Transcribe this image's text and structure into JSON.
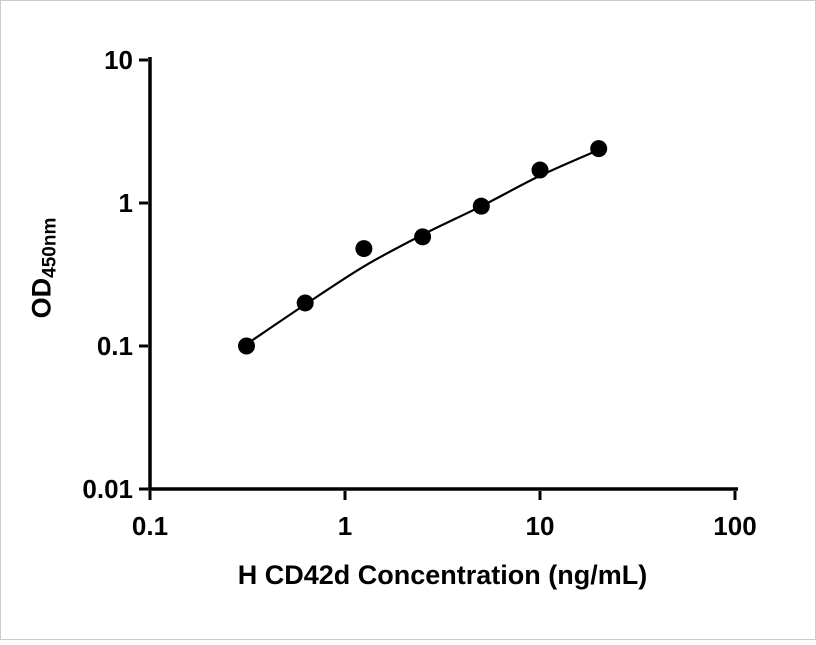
{
  "chart_data": {
    "type": "scatter",
    "title": "",
    "xlabel": "H CD42d Concentration (ng/mL)",
    "ylabel": "OD",
    "ylabel_subscript": "450nm",
    "xscale": "log",
    "yscale": "log",
    "xlim": [
      0.1,
      100
    ],
    "ylim": [
      0.01,
      10
    ],
    "grid": false,
    "legend": "none",
    "x_ticks": [
      0.1,
      1,
      10,
      100
    ],
    "x_tick_labels": [
      "0.1",
      "1",
      "10",
      "100"
    ],
    "y_ticks": [
      0.01,
      0.1,
      1,
      10
    ],
    "y_tick_labels": [
      "0.01",
      "0.1",
      "1",
      "10"
    ],
    "series": [
      {
        "name": "standard-points",
        "x": [
          0.3125,
          0.625,
          1.25,
          2.5,
          5,
          10,
          20
        ],
        "y": [
          0.1,
          0.2,
          0.48,
          0.58,
          0.95,
          1.7,
          2.4
        ]
      }
    ],
    "fit_curve": {
      "name": "fitted-standard-curve",
      "x": [
        0.3125,
        0.625,
        1.25,
        2.5,
        5,
        10,
        20
      ],
      "y": [
        0.103,
        0.195,
        0.36,
        0.6,
        0.95,
        1.55,
        2.35
      ]
    },
    "axis_color": "#000000",
    "marker_color": "#000000",
    "line_color": "#000000",
    "background_color": "#ffffff"
  }
}
